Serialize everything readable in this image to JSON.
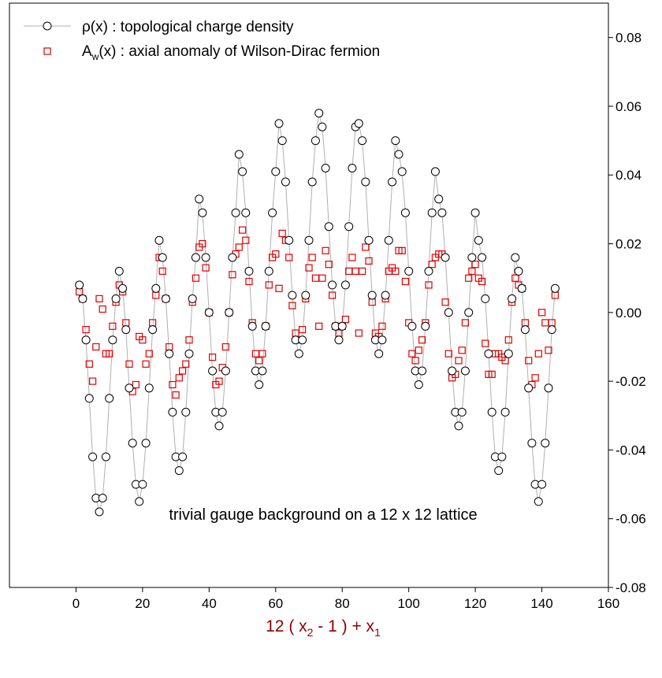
{
  "chart_data": {
    "type": "scatter",
    "title": "",
    "xlabel": {
      "base": "12 ( x",
      "sub1": "2",
      "mid": " - 1 ) + x",
      "sub2": "1"
    },
    "ylabel": "",
    "xlim": [
      -20,
      160
    ],
    "ylim": [
      -0.08,
      0.09
    ],
    "xticks": [
      0,
      20,
      40,
      60,
      80,
      100,
      120,
      140,
      160
    ],
    "xtick_labels": [
      "0",
      "20",
      "40",
      "60",
      "80",
      "100",
      "120",
      "140",
      "160"
    ],
    "yticks": [
      -0.08,
      -0.06,
      -0.04,
      -0.02,
      0.0,
      0.02,
      0.04,
      0.06,
      0.08
    ],
    "ytick_labels": [
      "-0.08",
      "-0.06",
      "-0.04",
      "-0.02",
      "0.00",
      "0.02",
      "0.04",
      "0.06",
      "0.08"
    ],
    "y_axis_side": "right",
    "grid": false,
    "legend_position": "top-left",
    "annotation": "trivial gauge background on a 12 x 12 lattice",
    "colors": {
      "rho": "#000000",
      "rho_line": "#b0b0b0",
      "aw": "#e00000",
      "xlabel": "#8b0000"
    },
    "legend": [
      {
        "text": "ρ(x) : topological charge density",
        "marker": "open-circle-with-line"
      },
      {
        "label_base": "A",
        "label_sub": "w",
        "label_rest": "(x) : axial anomaly of Wilson-Dirac fermion",
        "marker": "open-square"
      }
    ],
    "series": [
      {
        "id": "rho",
        "x": [
          1,
          2,
          3,
          4,
          5,
          6,
          7,
          8,
          9,
          10,
          11,
          12,
          13,
          14,
          15,
          16,
          17,
          18,
          19,
          20,
          21,
          22,
          23,
          24,
          25,
          26,
          27,
          28,
          29,
          30,
          31,
          32,
          33,
          34,
          35,
          36,
          37,
          38,
          39,
          40,
          41,
          42,
          43,
          44,
          45,
          46,
          47,
          48,
          49,
          50,
          51,
          52,
          53,
          54,
          55,
          56,
          57,
          58,
          59,
          60,
          61,
          62,
          63,
          64,
          65,
          66,
          67,
          68,
          69,
          70,
          71,
          72,
          73,
          74,
          75,
          76,
          77,
          78,
          79,
          80,
          81,
          82,
          83,
          84,
          85,
          86,
          87,
          88,
          89,
          90,
          91,
          92,
          93,
          94,
          95,
          96,
          97,
          98,
          99,
          100,
          101,
          102,
          103,
          104,
          105,
          106,
          107,
          108,
          109,
          110,
          111,
          112,
          113,
          114,
          115,
          116,
          117,
          118,
          119,
          120,
          121,
          122,
          123,
          124,
          125,
          126,
          127,
          128,
          129,
          130,
          131,
          132,
          133,
          134,
          135,
          136,
          137,
          138,
          139,
          140,
          141,
          142,
          143,
          144
        ],
        "y": [
          0.008,
          0.004,
          -0.008,
          -0.025,
          -0.042,
          -0.054,
          -0.058,
          -0.054,
          -0.042,
          -0.025,
          -0.008,
          0.004,
          0.012,
          0.007,
          -0.005,
          -0.022,
          -0.038,
          -0.05,
          -0.055,
          -0.05,
          -0.038,
          -0.022,
          -0.005,
          0.007,
          0.021,
          0.016,
          0.004,
          -0.012,
          -0.029,
          -0.042,
          -0.046,
          -0.042,
          -0.029,
          -0.012,
          0.004,
          0.016,
          0.033,
          0.029,
          0.016,
          0.0,
          -0.017,
          -0.029,
          -0.033,
          -0.029,
          -0.017,
          0.0,
          0.016,
          0.029,
          0.046,
          0.041,
          0.029,
          0.012,
          -0.004,
          -0.017,
          -0.021,
          -0.017,
          -0.004,
          0.012,
          0.029,
          0.041,
          0.055,
          0.05,
          0.038,
          0.021,
          0.005,
          -0.008,
          -0.012,
          -0.008,
          0.005,
          0.021,
          0.038,
          0.05,
          0.058,
          0.054,
          0.042,
          0.025,
          0.008,
          -0.004,
          -0.008,
          -0.004,
          0.008,
          0.025,
          0.042,
          0.054,
          0.055,
          0.05,
          0.038,
          0.021,
          0.005,
          -0.008,
          -0.012,
          -0.008,
          0.005,
          0.021,
          0.038,
          0.05,
          0.046,
          0.041,
          0.029,
          0.012,
          -0.004,
          -0.017,
          -0.021,
          -0.017,
          -0.004,
          0.012,
          0.029,
          0.041,
          0.033,
          0.029,
          0.016,
          0.0,
          -0.017,
          -0.029,
          -0.033,
          -0.029,
          -0.017,
          0.0,
          0.016,
          0.029,
          0.021,
          0.016,
          0.004,
          -0.012,
          -0.029,
          -0.042,
          -0.046,
          -0.042,
          -0.029,
          -0.012,
          0.004,
          0.016,
          0.012,
          0.007,
          -0.005,
          -0.022,
          -0.038,
          -0.05,
          -0.055,
          -0.05,
          -0.038,
          -0.022,
          -0.005,
          0.007
        ]
      },
      {
        "id": "aw",
        "x": [
          1,
          2,
          3,
          4,
          5,
          6,
          7,
          8,
          9,
          10,
          11,
          12,
          13,
          14,
          15,
          16,
          17,
          18,
          19,
          20,
          21,
          22,
          23,
          24,
          25,
          26,
          27,
          28,
          29,
          30,
          31,
          32,
          33,
          34,
          35,
          36,
          37,
          38,
          39,
          40,
          41,
          42,
          43,
          44,
          45,
          46,
          47,
          48,
          49,
          50,
          51,
          52,
          53,
          54,
          55,
          56,
          57,
          58,
          59,
          60,
          61,
          62,
          63,
          64,
          65,
          66,
          67,
          68,
          69,
          70,
          71,
          72,
          73,
          74,
          75,
          76,
          77,
          78,
          79,
          80,
          81,
          82,
          83,
          84,
          85,
          86,
          87,
          88,
          89,
          90,
          91,
          92,
          93,
          94,
          95,
          96,
          97,
          98,
          99,
          100,
          101,
          102,
          103,
          104,
          105,
          106,
          107,
          108,
          109,
          110,
          111,
          112,
          113,
          114,
          115,
          116,
          117,
          118,
          119,
          120,
          121,
          122,
          123,
          124,
          125,
          126,
          127,
          128,
          129,
          130,
          131,
          132,
          133,
          134,
          135,
          136,
          137,
          138,
          139,
          140,
          141,
          142,
          143,
          144
        ],
        "y": [
          0.006,
          0.004,
          -0.005,
          -0.015,
          -0.02,
          -0.01,
          0.004,
          0.001,
          -0.012,
          -0.012,
          -0.004,
          0.003,
          0.008,
          0.006,
          -0.003,
          -0.015,
          -0.023,
          -0.021,
          -0.007,
          -0.008,
          -0.015,
          -0.012,
          -0.003,
          0.005,
          0.016,
          0.012,
          0.004,
          -0.01,
          -0.021,
          -0.024,
          -0.019,
          -0.017,
          -0.015,
          -0.008,
          0.003,
          0.01,
          0.019,
          0.02,
          0.013,
          0.0,
          -0.013,
          -0.021,
          -0.02,
          -0.016,
          -0.01,
          0.0,
          0.011,
          0.017,
          0.019,
          0.024,
          0.021,
          0.009,
          -0.003,
          -0.012,
          -0.014,
          -0.012,
          -0.004,
          0.008,
          0.016,
          0.017,
          0.007,
          0.023,
          0.021,
          0.016,
          0.002,
          -0.006,
          -0.008,
          -0.005,
          0.004,
          0.013,
          0.016,
          0.01,
          -0.004,
          0.01,
          0.018,
          0.014,
          0.005,
          -0.004,
          -0.006,
          -0.004,
          -0.002,
          0.012,
          0.016,
          0.012,
          -0.006,
          0.012,
          0.019,
          0.015,
          0.003,
          -0.006,
          -0.007,
          -0.004,
          0.004,
          0.012,
          0.013,
          0.012,
          0.018,
          0.018,
          0.009,
          -0.003,
          -0.012,
          -0.014,
          -0.011,
          -0.008,
          -0.003,
          0.008,
          0.014,
          0.016,
          0.017,
          0.017,
          0.003,
          -0.012,
          -0.019,
          -0.018,
          -0.014,
          -0.011,
          -0.003,
          0.01,
          0.012,
          0.014,
          0.01,
          0.009,
          -0.009,
          -0.018,
          -0.018,
          -0.012,
          -0.012,
          -0.013,
          -0.014,
          -0.008,
          0.003,
          0.01,
          0.008,
          0.007,
          -0.003,
          -0.014,
          -0.021,
          -0.019,
          -0.012,
          0.0,
          -0.003,
          -0.011,
          -0.003,
          0.005
        ]
      }
    ]
  }
}
